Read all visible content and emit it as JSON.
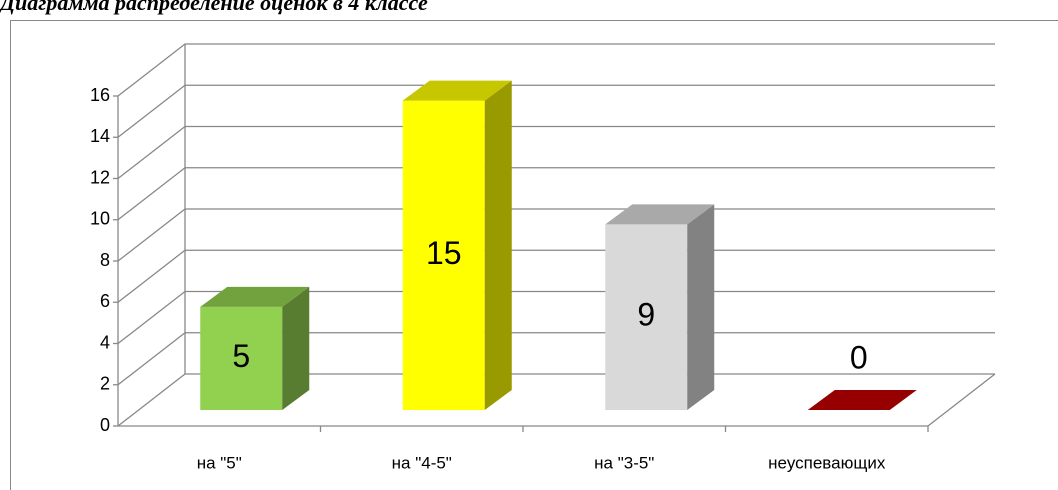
{
  "chart_data": {
    "type": "bar3d",
    "title": "Диаграмма распределение оценок в 4 классе",
    "categories": [
      "на \"5\"",
      "на \"4-5\"",
      "на \"3-5\"",
      "неуспевающих"
    ],
    "values": [
      5,
      15,
      9,
      0
    ],
    "colors": [
      "#92d050",
      "#ffff00",
      "#d9d9d9",
      "#c00000"
    ],
    "ylim": [
      0,
      16
    ],
    "yticks": [
      0,
      2,
      4,
      6,
      8,
      10,
      12,
      14,
      16
    ],
    "grid": true
  }
}
